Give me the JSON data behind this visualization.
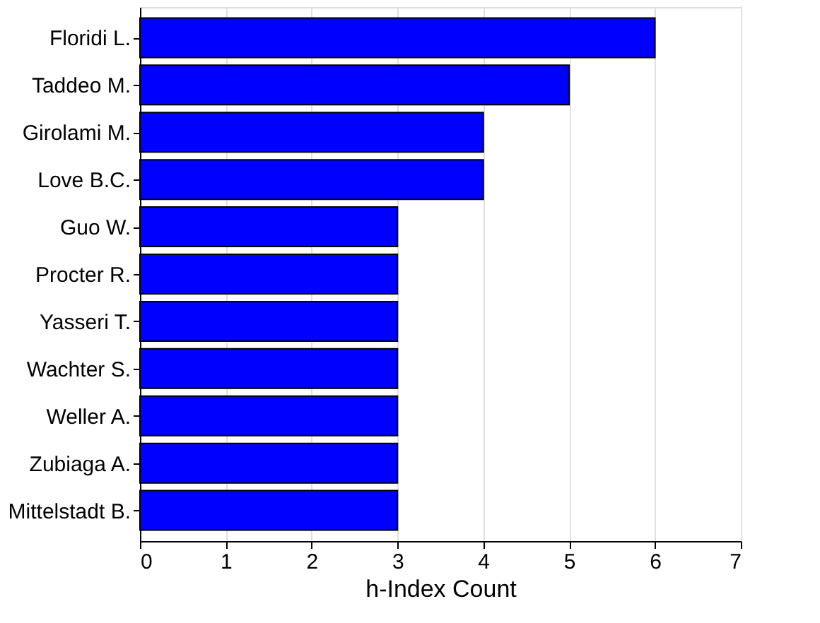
{
  "chart_data": {
    "type": "bar",
    "orientation": "horizontal",
    "xlabel": "h-Index Count",
    "categories": [
      "Floridi L.",
      "Taddeo M.",
      "Girolami M.",
      "Love B.C.",
      "Guo W.",
      "Procter R.",
      "Yasseri T.",
      "Wachter S.",
      "Weller A.",
      "Zubiaga A.",
      "Mittelstadt B."
    ],
    "values": [
      6,
      5,
      4,
      4,
      3,
      3,
      3,
      3,
      3,
      3,
      3
    ],
    "color": "#0000ff",
    "xlim": [
      0,
      7
    ],
    "xticks": [
      0,
      1,
      2,
      3,
      4,
      5,
      6,
      7
    ],
    "grid": "x"
  }
}
